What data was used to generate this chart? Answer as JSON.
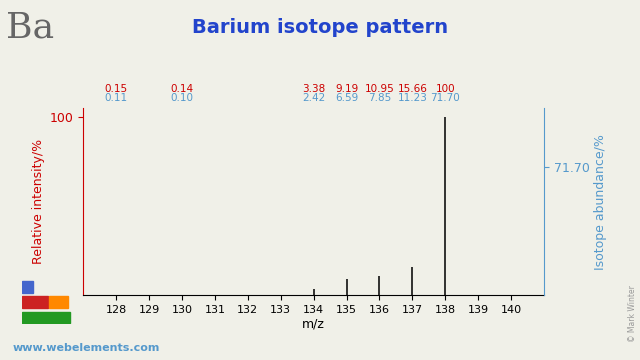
{
  "title": "Barium isotope pattern",
  "element_symbol": "Ba",
  "xlabel": "m/z",
  "ylabel_left": "Relative intensity/%",
  "ylabel_right": "Isotope abundance/%",
  "xlim": [
    127,
    141
  ],
  "ylim": [
    0,
    105
  ],
  "xticks": [
    128,
    129,
    130,
    131,
    132,
    133,
    134,
    135,
    136,
    137,
    138,
    139,
    140
  ],
  "isotopes": [
    {
      "mz": 128,
      "relative_intensity": 0.15,
      "abundance": 0.11
    },
    {
      "mz": 130,
      "relative_intensity": 0.14,
      "abundance": 0.1
    },
    {
      "mz": 134,
      "relative_intensity": 3.38,
      "abundance": 2.42
    },
    {
      "mz": 135,
      "relative_intensity": 9.19,
      "abundance": 6.59
    },
    {
      "mz": 136,
      "relative_intensity": 10.95,
      "abundance": 7.85
    },
    {
      "mz": 137,
      "relative_intensity": 15.66,
      "abundance": 11.23
    },
    {
      "mz": 138,
      "relative_intensity": 100.0,
      "abundance": 71.7
    }
  ],
  "annotation_red_values": [
    "0.15",
    "0.14",
    "3.38",
    "9.19",
    "10.95",
    "15.66",
    "100"
  ],
  "annotation_blue_values": [
    "0.11",
    "0.10",
    "2.42",
    "6.59",
    "7.85",
    "11.23",
    "71.70"
  ],
  "annotation_mz": [
    128,
    130,
    134,
    135,
    136,
    137,
    138
  ],
  "bar_color": "#111111",
  "left_axis_color": "#cc0000",
  "right_axis_color": "#5599cc",
  "title_color": "#2244cc",
  "background_color": "#f0f0e8",
  "website": "www.webelements.com",
  "copyright": "© Mark Winter",
  "right_label_value": "71.70",
  "title_fontsize": 14,
  "axis_label_fontsize": 9,
  "tick_fontsize": 8,
  "annotation_fontsize": 7.5
}
